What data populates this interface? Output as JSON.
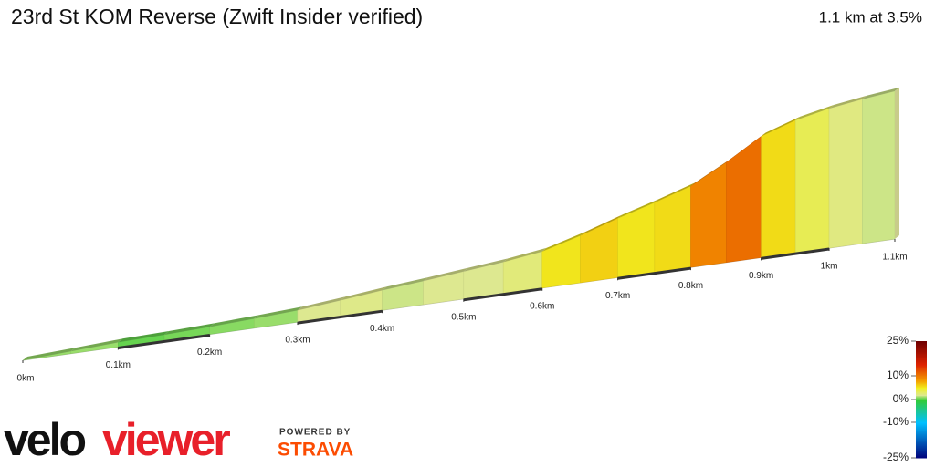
{
  "chart_data": {
    "type": "elevation-profile",
    "title": "23rd St KOM Reverse (Zwift Insider verified)",
    "subtitle": "1.1 km at 3.5%",
    "x": [
      0,
      0.05,
      0.1,
      0.15,
      0.2,
      0.25,
      0.3,
      0.35,
      0.4,
      0.45,
      0.5,
      0.55,
      0.6,
      0.65,
      0.7,
      0.75,
      0.8,
      0.85,
      0.9,
      0.95,
      1.0,
      1.05,
      1.1
    ],
    "elevation": [
      0,
      0.6,
      1.2,
      1.5,
      1.9,
      2.4,
      3,
      4,
      5.1,
      6,
      7,
      8,
      9.3,
      12,
      15.1,
      17.8,
      20.7,
      25.5,
      30.9,
      33.8,
      35.6,
      36.8,
      37.7
    ],
    "xlim": [
      0,
      1.1
    ],
    "xticks": [
      {
        "value": 0,
        "label": "0km"
      },
      {
        "value": 0.1,
        "label": "0.1km"
      },
      {
        "value": 0.2,
        "label": "0.2km"
      },
      {
        "value": 0.3,
        "label": "0.3km"
      },
      {
        "value": 0.4,
        "label": "0.4km"
      },
      {
        "value": 0.5,
        "label": "0.5km"
      },
      {
        "value": 0.6,
        "label": "0.6km"
      },
      {
        "value": 0.7,
        "label": "0.7km"
      },
      {
        "value": 0.8,
        "label": "0.8km"
      },
      {
        "value": 0.9,
        "label": "0.9km"
      },
      {
        "value": 1.0,
        "label": "1km"
      },
      {
        "value": 1.1,
        "label": "1.1km"
      }
    ],
    "colorbar_ticks": [
      {
        "value": 25,
        "label": "25%"
      },
      {
        "value": 10,
        "label": "10%"
      },
      {
        "value": 0,
        "label": "0%"
      },
      {
        "value": -10,
        "label": "-10%"
      },
      {
        "value": -25,
        "label": "-25%"
      }
    ],
    "colorscale": [
      [
        -25,
        "#00007a"
      ],
      [
        -10,
        "#00c0ff"
      ],
      [
        0,
        "#33cc33"
      ],
      [
        2,
        "#dde890"
      ],
      [
        5,
        "#f0f020"
      ],
      [
        8,
        "#f5a000"
      ],
      [
        15,
        "#dd2200"
      ],
      [
        25,
        "#700000"
      ]
    ]
  },
  "branding": {
    "logo_a": "velo",
    "logo_b": "viewer",
    "powered": "POWERED BY",
    "strava": "STRAVA"
  }
}
